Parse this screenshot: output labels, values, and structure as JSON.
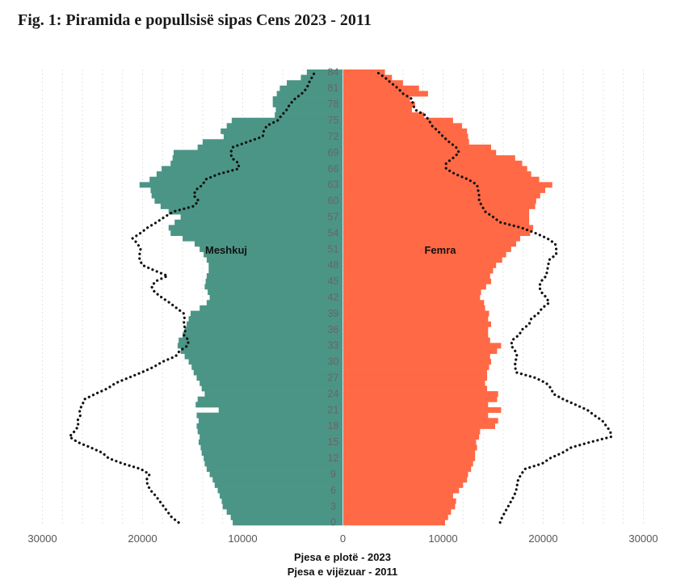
{
  "title": "Fig. 1: Piramida e popullsisë sipas Cens 2023 - 2011",
  "colors": {
    "male": "#4b9586",
    "female": "#ff6945",
    "dotted": "#111111",
    "grid": "#e2e2e2"
  },
  "chart_data": {
    "type": "bar",
    "orientation": "horizontal-population-pyramid",
    "xlabel": "Pjesa e plotë - 2023",
    "xlabel2": "Pjesa e vijëzuar - 2011",
    "xlim": [
      -30000,
      30000
    ],
    "x_ticks": [
      -30000,
      -20000,
      -10000,
      0,
      10000,
      20000,
      30000
    ],
    "x_tick_labels": [
      "30000",
      "20000",
      "10000",
      "0",
      "10000",
      "20000",
      "30000"
    ],
    "y_ticks": [
      0,
      3,
      6,
      9,
      12,
      15,
      18,
      21,
      24,
      27,
      30,
      33,
      36,
      39,
      42,
      45,
      48,
      51,
      54,
      57,
      60,
      63,
      66,
      69,
      72,
      75,
      78,
      81,
      84
    ],
    "ages": [
      0,
      1,
      2,
      3,
      4,
      5,
      6,
      7,
      8,
      9,
      10,
      11,
      12,
      13,
      14,
      15,
      16,
      17,
      18,
      19,
      20,
      21,
      22,
      23,
      24,
      25,
      26,
      27,
      28,
      29,
      30,
      31,
      32,
      33,
      34,
      35,
      36,
      37,
      38,
      39,
      40,
      41,
      42,
      43,
      44,
      45,
      46,
      47,
      48,
      49,
      50,
      51,
      52,
      53,
      54,
      55,
      56,
      57,
      58,
      59,
      60,
      61,
      62,
      63,
      64,
      65,
      66,
      67,
      68,
      69,
      70,
      71,
      72,
      73,
      74,
      75,
      76,
      77,
      78,
      79,
      80,
      81,
      82,
      83,
      84
    ],
    "series": [
      {
        "name": "Meshkuj",
        "year": 2023,
        "style": "bar",
        "values": [
          11000,
          11200,
          11600,
          12000,
          12100,
          12300,
          12500,
          12800,
          13000,
          13300,
          13600,
          13800,
          13900,
          14100,
          14200,
          14400,
          14300,
          14500,
          14600,
          14400,
          14600,
          12400,
          14700,
          14500,
          13800,
          14100,
          14300,
          14600,
          14900,
          15100,
          15400,
          15800,
          16200,
          16500,
          16400,
          16000,
          15800,
          15600,
          15400,
          15200,
          14300,
          13600,
          13300,
          13500,
          13800,
          13700,
          13600,
          13400,
          13400,
          13600,
          13900,
          14300,
          14800,
          16000,
          17200,
          17400,
          16800,
          16200,
          17400,
          18200,
          18800,
          19100,
          19200,
          20300,
          19300,
          18600,
          18100,
          17200,
          17000,
          16900,
          14500,
          14000,
          11900,
          12200,
          11600,
          11100,
          6800,
          6700,
          7000,
          7000,
          6600,
          6300,
          5600,
          4200,
          3600
        ]
      },
      {
        "name": "Femra",
        "year": 2023,
        "style": "bar",
        "values": [
          10200,
          10500,
          10800,
          11200,
          11300,
          11000,
          11600,
          12000,
          12400,
          12500,
          12800,
          13000,
          13200,
          13200,
          13400,
          13300,
          13600,
          13700,
          15200,
          15500,
          14500,
          15800,
          14500,
          15400,
          15500,
          14400,
          14200,
          14400,
          14400,
          14600,
          14800,
          14700,
          15400,
          15800,
          14700,
          14500,
          14500,
          14800,
          14500,
          14600,
          14200,
          14100,
          13700,
          13800,
          14300,
          14800,
          14700,
          15000,
          15300,
          15900,
          16300,
          16800,
          17300,
          17700,
          18700,
          19000,
          18600,
          18600,
          18600,
          19200,
          19300,
          19700,
          20200,
          20900,
          19600,
          18800,
          18400,
          17900,
          17200,
          15300,
          14800,
          12600,
          12500,
          12400,
          11900,
          11000,
          8100,
          6900,
          7200,
          6700,
          8500,
          7600,
          6000,
          4900,
          4200
        ]
      },
      {
        "name": "Meshkuj 2011",
        "year": 2011,
        "style": "dotted",
        "values": [
          16400,
          17100,
          17500,
          17900,
          18300,
          18700,
          19200,
          19500,
          19600,
          19300,
          20200,
          22000,
          23400,
          24000,
          25200,
          26500,
          27300,
          26800,
          26400,
          26500,
          26200,
          26300,
          26000,
          25800,
          24700,
          23500,
          22700,
          21400,
          20100,
          18900,
          18000,
          16700,
          16300,
          15500,
          15400,
          15900,
          15700,
          15900,
          15800,
          15900,
          16600,
          17300,
          18100,
          18800,
          19100,
          18700,
          17500,
          18800,
          20000,
          20300,
          20300,
          20200,
          20500,
          21000,
          20200,
          19500,
          18600,
          17800,
          16900,
          14900,
          14400,
          14900,
          14700,
          14000,
          13700,
          12400,
          10400,
          10400,
          11100,
          11200,
          11000,
          9500,
          8000,
          7900,
          7600,
          6500,
          6100,
          5600,
          5300,
          4800,
          4100,
          3600,
          3400,
          3100,
          2800
        ]
      },
      {
        "name": "Femra 2011",
        "year": 2011,
        "style": "dotted",
        "values": [
          15700,
          15900,
          16200,
          16500,
          16800,
          17100,
          17300,
          17400,
          17500,
          17800,
          18200,
          19900,
          20700,
          21900,
          22800,
          24700,
          26800,
          26700,
          26300,
          25900,
          25100,
          24400,
          23200,
          22000,
          21000,
          20800,
          20300,
          19200,
          17300,
          17200,
          17200,
          17400,
          17200,
          16800,
          16900,
          17600,
          17900,
          18600,
          18800,
          19500,
          19900,
          20600,
          20300,
          19800,
          19600,
          19800,
          20300,
          20400,
          20500,
          20600,
          21300,
          21300,
          21200,
          20400,
          19200,
          17800,
          15700,
          15000,
          14200,
          13900,
          13600,
          13600,
          13500,
          13400,
          12500,
          11200,
          10300,
          10300,
          11000,
          11600,
          11300,
          10600,
          10000,
          9500,
          8900,
          8600,
          8200,
          7200,
          7000,
          6900,
          6000,
          5500,
          4800,
          4200,
          3400
        ]
      }
    ],
    "legend_labels": {
      "male": "Meshkuj",
      "female": "Femra"
    },
    "grid": true,
    "grid_axis": "x"
  }
}
